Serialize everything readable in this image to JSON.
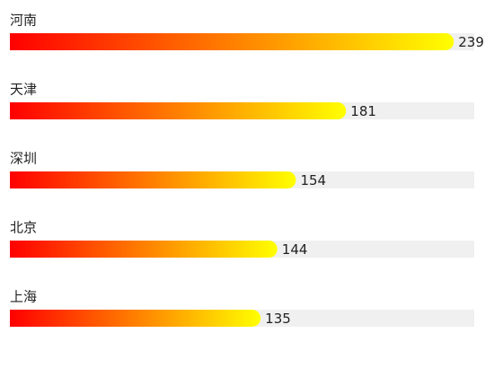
{
  "chart_data": {
    "type": "bar",
    "orientation": "horizontal",
    "categories": [
      "河南",
      "天津",
      "深圳",
      "北京",
      "上海"
    ],
    "values": [
      239,
      181,
      154,
      144,
      135
    ],
    "xlim": [
      0,
      250
    ],
    "gradient": [
      "#ff0000",
      "#ffff00"
    ],
    "track_color": "#f0f0f0"
  }
}
